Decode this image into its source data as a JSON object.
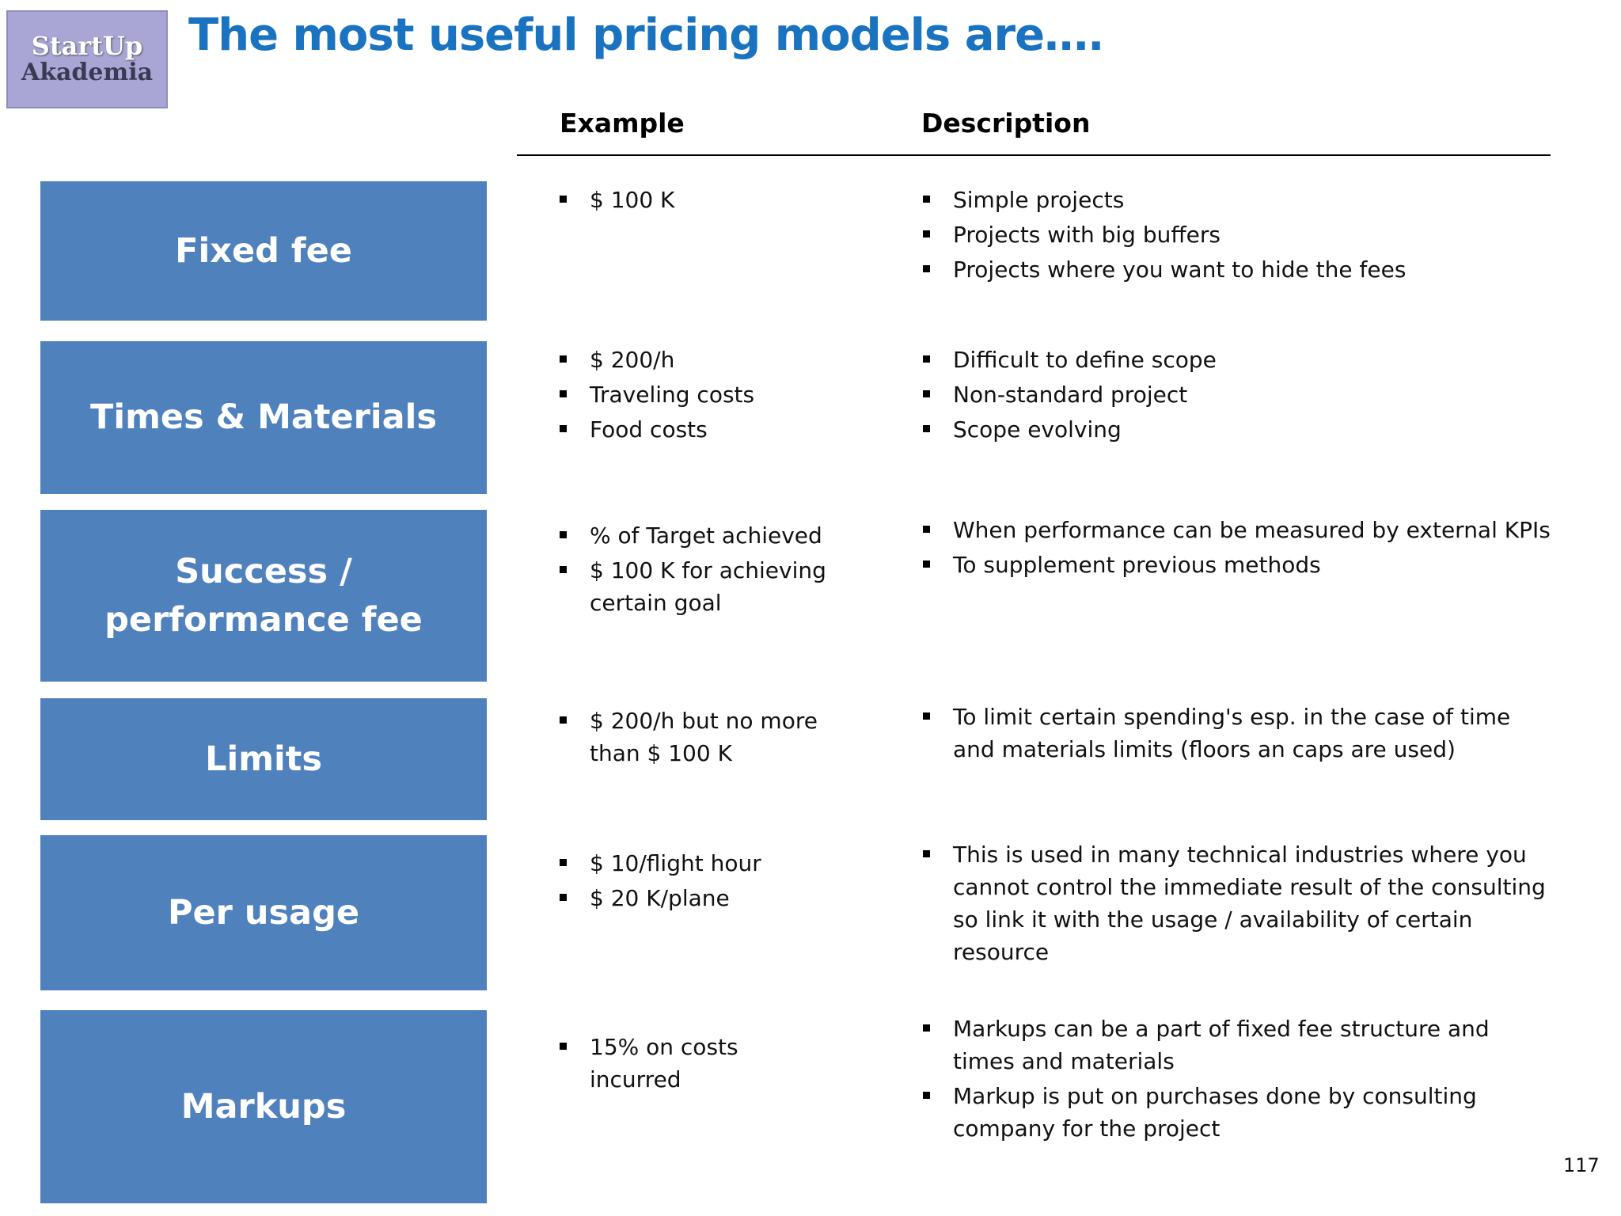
{
  "logo": {
    "line1": "StartUp",
    "line2": "Akademia"
  },
  "title": "The most useful pricing models are….",
  "headers": [
    "Example",
    "Description"
  ],
  "rows": [
    {
      "label": "Fixed fee",
      "examples": [
        "$ 100 K"
      ],
      "descriptions": [
        "Simple projects",
        "Projects with big buffers",
        "Projects where you want to hide the fees"
      ]
    },
    {
      "label": "Times & Materials",
      "examples": [
        "$ 200/h",
        "Traveling costs",
        "Food costs"
      ],
      "descriptions": [
        "Difficult to define scope",
        "Non-standard project",
        "Scope evolving"
      ]
    },
    {
      "label": "Success / performance fee",
      "examples": [
        "% of  Target achieved",
        "$ 100 K for achieving certain goal"
      ],
      "descriptions": [
        "When performance can be measured by external KPIs",
        "To supplement previous methods"
      ]
    },
    {
      "label": "Limits",
      "examples": [
        "$ 200/h but no more than $ 100 K"
      ],
      "descriptions": [
        "To limit certain spending's esp. in the case of  time and materials limits (floors an caps are used)"
      ]
    },
    {
      "label": "Per usage",
      "examples": [
        "$ 10/flight hour",
        "$ 20  K/plane"
      ],
      "descriptions": [
        "This is used in many technical industries where you cannot control  the immediate  result of the consulting so link it with the usage  / availability of certain resource"
      ]
    },
    {
      "label": "Markups",
      "examples": [
        "15% on costs incurred"
      ],
      "descriptions": [
        "Markups can be a part of fixed fee structure and times and materials",
        "Markup is put on purchases done by consulting company  for the project"
      ]
    }
  ],
  "page_number": "117"
}
